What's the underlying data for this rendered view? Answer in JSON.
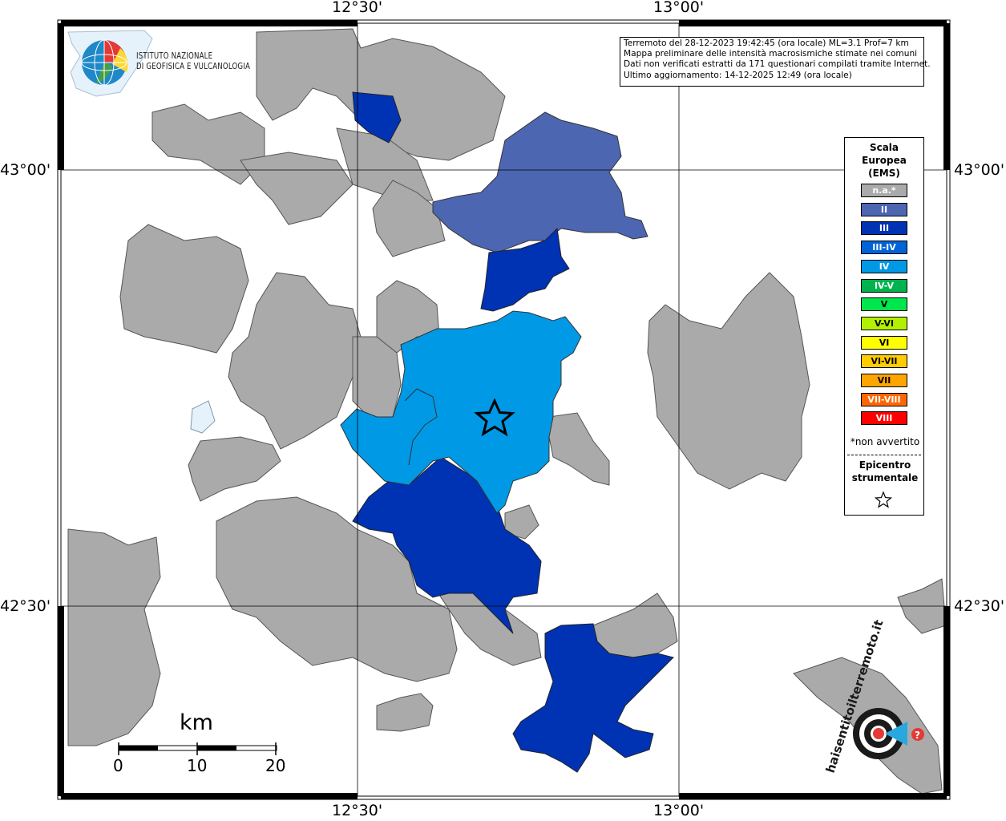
{
  "map": {
    "title_lines": [
      "Terremoto del 28-12-2023 19:42:45 (ora locale) ML=3.1 Prof=7 km",
      "Mappa preliminare delle intensità macrosismiche stimate nei comuni",
      "Dati non verificati estratti da 171 questionari compilati tramite Internet.",
      "Ultimo aggiornamento: 14-12-2025 12:49 (ora locale)"
    ],
    "coordinates": {
      "lon_1230": "12°30'",
      "lon_1300": "13°00'",
      "lat_4300": "43°00'",
      "lat_4230": "42°30'"
    },
    "institute": {
      "line1": "ISTITUTO NAZIONALE",
      "line2": "DI GEOFISICA E VULCANOLOGIA"
    },
    "scale_bar": {
      "unit": "km",
      "labels": [
        "0",
        "10",
        "20"
      ]
    },
    "haisentito_logo_text": "haisentitoilterremoto.it / WWW."
  },
  "legend": {
    "title_lines": [
      "Scala",
      "Europea",
      "(EMS)"
    ],
    "items": [
      {
        "label": "n.a.*",
        "color": "#aaaaaa"
      },
      {
        "label": "II",
        "color": "#4d66b2"
      },
      {
        "label": "III",
        "color": "#0033b3"
      },
      {
        "label": "III-IV",
        "color": "#0063d6"
      },
      {
        "label": "IV",
        "color": "#0099e6"
      },
      {
        "label": "IV-V",
        "color": "#00b34d"
      },
      {
        "label": "V",
        "color": "#00e64d"
      },
      {
        "label": "V-VI",
        "color": "#b3f000"
      },
      {
        "label": "VI",
        "color": "#ffff00"
      },
      {
        "label": "VI-VII",
        "color": "#ffcc00"
      },
      {
        "label": "VII",
        "color": "#ffa500"
      },
      {
        "label": "VII-VIII",
        "color": "#ff6600"
      },
      {
        "label": "VIII",
        "color": "#ff0000"
      }
    ],
    "note": "*non avvertito",
    "epicenter_lines": [
      "Epicentro",
      "strumentale"
    ]
  },
  "colors": {
    "na": "#aaaaaa",
    "II": "#4d66b2",
    "III": "#0033b3",
    "IV": "#0099e6"
  }
}
